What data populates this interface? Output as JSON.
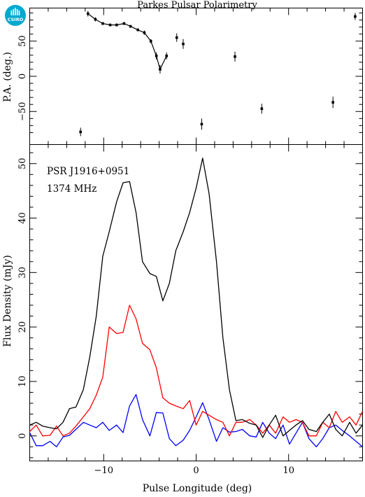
{
  "title": "Parkes Pulsar Polarimetry",
  "logo": {
    "text": "CSIRO",
    "color": "#00a9ce"
  },
  "chart_data": [
    {
      "type": "scatter",
      "panel": "position-angle",
      "ylabel": "P.A. (deg.)",
      "xlim": [
        -18,
        18
      ],
      "ylim": [
        -97,
        97
      ],
      "yticks": [
        -50,
        0,
        50
      ],
      "yticklabels": [
        "−50",
        "0",
        "50"
      ],
      "line_segments": [
        {
          "x": [
            -11.7,
            -10.9,
            -10.1,
            -9.3,
            -8.6,
            -7.8,
            -7.1,
            -6.3,
            -5.6,
            -4.9,
            -4.3,
            -3.9,
            -3.2
          ],
          "y": [
            89,
            81,
            75,
            73,
            73,
            75,
            71,
            66,
            62,
            50,
            29,
            10,
            29
          ]
        }
      ],
      "points": [
        {
          "x": -12.5,
          "y": -79,
          "err": 6
        },
        {
          "x": -11.7,
          "y": 89,
          "err": 4
        },
        {
          "x": -10.9,
          "y": 81,
          "err": 3
        },
        {
          "x": -10.1,
          "y": 75,
          "err": 2
        },
        {
          "x": -9.3,
          "y": 73,
          "err": 2
        },
        {
          "x": -8.6,
          "y": 73,
          "err": 2
        },
        {
          "x": -7.8,
          "y": 75,
          "err": 2
        },
        {
          "x": -7.1,
          "y": 71,
          "err": 2
        },
        {
          "x": -6.3,
          "y": 66,
          "err": 2
        },
        {
          "x": -5.6,
          "y": 62,
          "err": 3
        },
        {
          "x": -4.9,
          "y": 50,
          "err": 3
        },
        {
          "x": -4.3,
          "y": 29,
          "err": 5
        },
        {
          "x": -3.9,
          "y": 10,
          "err": 6
        },
        {
          "x": -3.2,
          "y": 29,
          "err": 5
        },
        {
          "x": -2.1,
          "y": 55,
          "err": 6
        },
        {
          "x": -1.4,
          "y": 46,
          "err": 7
        },
        {
          "x": 0.6,
          "y": -68,
          "err": 8
        },
        {
          "x": 4.2,
          "y": 28,
          "err": 7
        },
        {
          "x": 7.1,
          "y": -46,
          "err": 7
        },
        {
          "x": 14.8,
          "y": -37,
          "err": 8
        },
        {
          "x": 17.2,
          "y": 85,
          "err": 5
        }
      ]
    },
    {
      "type": "line",
      "panel": "flux-density",
      "annotations": [
        "PSR J1916+0951",
        "1374 MHz"
      ],
      "xlabel": "Pulse Longitude (deg)",
      "ylabel": "Flux Density (mJy)",
      "xlim": [
        -18,
        18
      ],
      "ylim": [
        -4.6,
        53.5
      ],
      "xticks": [
        -10,
        0,
        10
      ],
      "xticklabels": [
        "−10",
        "0",
        "10"
      ],
      "yticks": [
        0,
        10,
        20,
        30,
        40,
        50
      ],
      "x": [
        -18,
        -17.3,
        -16.6,
        -15.8,
        -15.1,
        -14.4,
        -13.7,
        -13.0,
        -12.2,
        -11.5,
        -10.8,
        -10.1,
        -9.4,
        -8.6,
        -7.9,
        -7.2,
        -6.5,
        -5.8,
        -5.0,
        -4.3,
        -3.6,
        -2.9,
        -2.2,
        -1.4,
        -0.7,
        0.0,
        0.7,
        1.4,
        2.2,
        2.9,
        3.6,
        4.3,
        5.0,
        5.8,
        6.5,
        7.2,
        7.9,
        8.6,
        9.4,
        10.1,
        10.8,
        11.5,
        12.2,
        13.0,
        13.7,
        14.4,
        15.1,
        15.8,
        16.6,
        17.3,
        18.0
      ],
      "series": [
        {
          "color": "#000000",
          "values": [
            2.0,
            2.5,
            1.8,
            1.5,
            1.3,
            2.5,
            5.0,
            5.3,
            8.5,
            14.5,
            22,
            33,
            37.5,
            43,
            46.5,
            46.7,
            41,
            32,
            29.8,
            29.3,
            24.8,
            28,
            34,
            37.5,
            41,
            45.5,
            51,
            44.5,
            32,
            18,
            8.5,
            2.8,
            3.0,
            2.3,
            2.0,
            -0.3,
            2.0,
            3.8,
            0.0,
            1.0,
            2.0,
            2.8,
            1.2,
            0.8,
            2.5,
            4.0,
            1.2,
            0.0,
            2.5,
            0.5,
            2.0
          ]
        },
        {
          "color": "#ff0000",
          "values": [
            0.8,
            2.0,
            0.0,
            0.1,
            1.8,
            0.0,
            0.5,
            1.8,
            3.5,
            5.0,
            7.5,
            10.8,
            20,
            18.8,
            19,
            24,
            21.5,
            17,
            15.8,
            12.5,
            7.0,
            6.0,
            5.5,
            5.0,
            6.5,
            2.0,
            4.5,
            3.8,
            3.0,
            2.5,
            0.0,
            2.5,
            2.5,
            3.0,
            2.0,
            0.5,
            2.0,
            0.5,
            3.5,
            2.5,
            3.0,
            2.5,
            0.0,
            0.0,
            2.5,
            1.5,
            4.5,
            2.5,
            3.5,
            2.0,
            4.5
          ]
        },
        {
          "color": "#0000ff",
          "values": [
            0.6,
            -1.8,
            -1.8,
            -1.0,
            -2.0,
            -0.2,
            0.1,
            1.2,
            2.5,
            2.0,
            1.5,
            2.5,
            1.0,
            2.0,
            0.6,
            5.5,
            7.6,
            3.0,
            0.0,
            4.3,
            4.2,
            -0.5,
            -1.8,
            -0.8,
            1.0,
            3.5,
            6.1,
            3.0,
            -1.0,
            1.5,
            0.7,
            0.8,
            1.2,
            0.0,
            -0.2,
            2.5,
            0.5,
            -0.5,
            2.0,
            -1.5,
            0.5,
            2.5,
            -0.5,
            -2.0,
            -0.5,
            1.5,
            2.0,
            1.0,
            0.0,
            -1.0,
            -2.0
          ]
        }
      ]
    }
  ]
}
